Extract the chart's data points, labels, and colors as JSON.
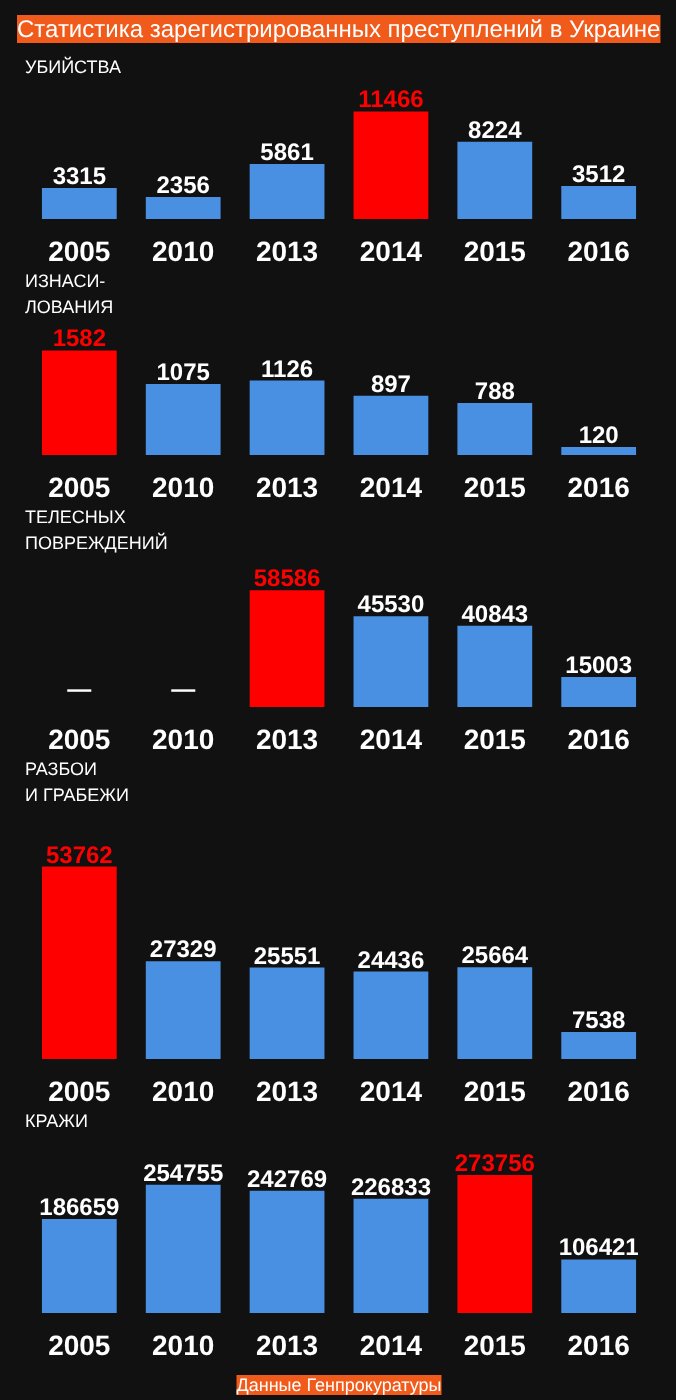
{
  "chart_data": [
    {
      "type": "bar",
      "title": "УБИЙСТВА",
      "annotations": [
        "Статистика зарегистрированных преступлений в Украине"
      ],
      "categories": [
        "2005",
        "2010",
        "2013",
        "2014",
        "2015",
        "2016"
      ],
      "values": [
        3315,
        2356,
        5861,
        11466,
        8224,
        3512
      ],
      "colors": [
        "#4a90e2",
        "#4a90e2",
        "#4a90e2",
        "#ff0000",
        "#4a90e2",
        "#4a90e2"
      ],
      "data_labels": true
    },
    {
      "type": "bar",
      "title": "ИЗНАСИ-\nЛОВАНИЯ",
      "categories": [
        "2005",
        "2010",
        "2013",
        "2014",
        "2015",
        "2016"
      ],
      "values": [
        1582,
        1075,
        1126,
        897,
        788,
        120
      ],
      "colors": [
        "#ff0000",
        "#4a90e2",
        "#4a90e2",
        "#4a90e2",
        "#4a90e2",
        "#4a90e2"
      ],
      "data_labels": true
    },
    {
      "type": "bar",
      "title": "ТЕЛЕСНЫХ\nПОВРЕЖДЕНИЙ",
      "categories": [
        "2005",
        "2010",
        "2013",
        "2014",
        "2015",
        "2016"
      ],
      "values": [
        null,
        null,
        58586,
        45530,
        40843,
        15003
      ],
      "value_labels": [
        "—",
        "—",
        "58586",
        "45530",
        "40843",
        "15003"
      ],
      "colors": [
        "#4a90e2",
        "#4a90e2",
        "#ff0000",
        "#4a90e2",
        "#4a90e2",
        "#4a90e2"
      ]
    },
    {
      "type": "bar",
      "title": "РАЗБОИ\nИ ГРАБЕЖИ",
      "categories": [
        "2005",
        "2010",
        "2013",
        "2014",
        "2015",
        "2016"
      ],
      "values": [
        53762,
        27329,
        25551,
        24436,
        25664,
        7538
      ],
      "colors": [
        "#ff0000",
        "#4a90e2",
        "#4a90e2",
        "#4a90e2",
        "#4a90e2",
        "#4a90e2"
      ],
      "data_labels": true
    },
    {
      "type": "bar",
      "title": "КРАЖИ",
      "annotations": [
        "Данные Генпрокуратуры"
      ],
      "categories": [
        "2005",
        "2010",
        "2013",
        "2014",
        "2015",
        "2016"
      ],
      "values": [
        186659,
        254755,
        242769,
        226833,
        273756,
        106421
      ],
      "colors": [
        "#4a90e2",
        "#4a90e2",
        "#4a90e2",
        "#4a90e2",
        "#ff0000",
        "#4a90e2"
      ],
      "data_labels": true
    }
  ]
}
